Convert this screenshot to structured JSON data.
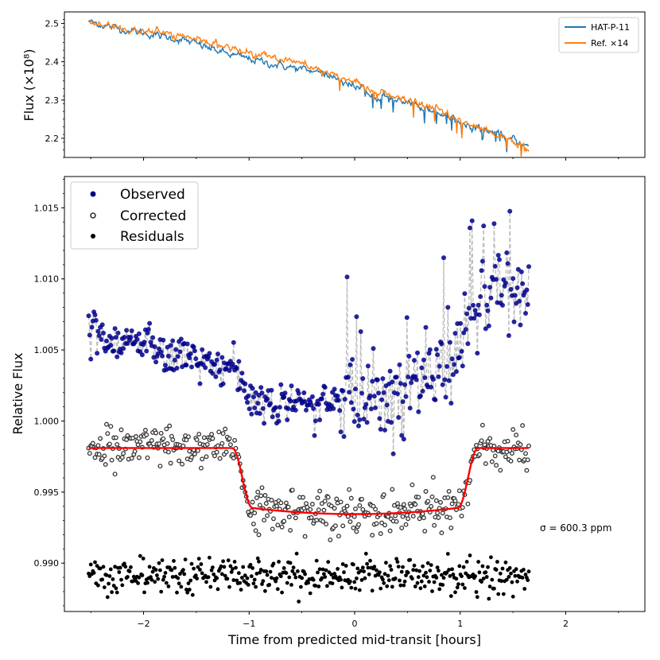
{
  "chart_data": [
    {
      "type": "line",
      "panel": "top",
      "ylabel": "Flux (×10⁸)",
      "xlim": [
        -2.75,
        2.75
      ],
      "ylim": [
        2.15,
        2.53
      ],
      "yticks": [
        "2.2",
        "2.3",
        "2.4",
        "2.5"
      ],
      "ytick_values": [
        2.2,
        2.3,
        2.4,
        2.5
      ],
      "x_range": [
        -2.52,
        1.65
      ],
      "legend": {
        "position": "top-right",
        "entries": [
          "HAT-P-11",
          "Ref. ×14"
        ]
      },
      "series": [
        {
          "name": "HAT-P-11",
          "color": "#1f77b4",
          "anchor_x": [
            -2.52,
            -2.3,
            -2.0,
            -1.6,
            -1.2,
            -0.8,
            -0.5,
            -0.2,
            0.0,
            0.2,
            0.5,
            0.8,
            1.0,
            1.2,
            1.4,
            1.65
          ],
          "anchor_y": [
            2.505,
            2.49,
            2.475,
            2.455,
            2.42,
            2.395,
            2.38,
            2.36,
            2.335,
            2.315,
            2.29,
            2.27,
            2.24,
            2.225,
            2.205,
            2.18
          ]
        },
        {
          "name": "Ref. ×14",
          "color": "#ff7f0e",
          "anchor_x": [
            -2.52,
            -2.3,
            -2.0,
            -1.6,
            -1.2,
            -0.8,
            -0.5,
            -0.2,
            0.0,
            0.2,
            0.5,
            0.8,
            1.0,
            1.2,
            1.4,
            1.65
          ],
          "anchor_y": [
            2.505,
            2.49,
            2.48,
            2.465,
            2.435,
            2.415,
            2.395,
            2.37,
            2.345,
            2.32,
            2.295,
            2.275,
            2.245,
            2.225,
            2.205,
            2.17
          ]
        }
      ]
    },
    {
      "type": "scatter",
      "panel": "bottom",
      "xlabel": "Time from predicted mid-transit [hours]",
      "ylabel": "Relative Flux",
      "xlim": [
        -2.75,
        2.75
      ],
      "ylim": [
        0.9866,
        1.0172
      ],
      "xticks": [
        "−2",
        "−1",
        "0",
        "1",
        "2"
      ],
      "xtick_values": [
        -2,
        -1,
        0,
        1,
        2
      ],
      "yticks": [
        "0.990",
        "0.995",
        "1.000",
        "1.005",
        "1.010",
        "1.015"
      ],
      "ytick_values": [
        0.99,
        0.995,
        1.0,
        1.005,
        1.01,
        1.015
      ],
      "x_range": [
        -2.52,
        1.65
      ],
      "n_points": 420,
      "legend": {
        "position": "top-left",
        "entries": [
          "Observed",
          "Corrected",
          "Residuals"
        ]
      },
      "series": [
        {
          "name": "Observed",
          "color": "#00008b",
          "line_color": "#bbbbbb",
          "baseline_x": [
            -2.52,
            -2.0,
            -1.5,
            -1.16,
            -1.0,
            -0.6,
            -0.2,
            0.2,
            0.6,
            0.9,
            1.16,
            1.4,
            1.65
          ],
          "baseline_y": [
            1.0065,
            1.0053,
            1.0042,
            1.0041,
            1.0015,
            1.0013,
            1.0012,
            1.0015,
            1.0025,
            1.0045,
            1.0082,
            1.0092,
            1.0088
          ],
          "scatter": 0.0009
        },
        {
          "name": "Corrected",
          "color": "#333333",
          "scatter": 0.0007
        },
        {
          "name": "Residuals",
          "color": "#000000",
          "center": 0.9891,
          "scatter": 0.0006
        },
        {
          "name": "Transit model",
          "color": "#ff0000",
          "out_of_transit": 0.9981,
          "in_transit_min": 0.99345,
          "ingress": [
            -1.16,
            -0.97
          ],
          "egress": [
            0.98,
            1.17
          ]
        }
      ],
      "annotation": "σ = 600.3 ppm"
    }
  ]
}
